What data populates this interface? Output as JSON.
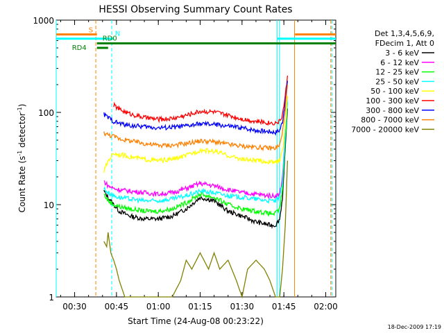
{
  "chart_data": {
    "type": "line",
    "title": "HESSI Observing Summary Count Rates",
    "xlabel": "Start Time (24-Aug-08 00:23:22)",
    "ylabel_main": "Count Rate (s",
    "ylabel_sup1": "-1",
    "ylabel_mid": " detector",
    "ylabel_sup2": "-1",
    "ylabel_end": ")",
    "y_scale": "log",
    "ylim": [
      1,
      1000
    ],
    "xlim_minutes": [
      23.4,
      123.6
    ],
    "x_ticks": [
      {
        "label": "00:30",
        "minutes": 30
      },
      {
        "label": "00:45",
        "minutes": 45
      },
      {
        "label": "01:00",
        "minutes": 60
      },
      {
        "label": "01:15",
        "minutes": 75
      },
      {
        "label": "01:30",
        "minutes": 90
      },
      {
        "label": "01:45",
        "minutes": 105
      },
      {
        "label": "02:00",
        "minutes": 120
      }
    ],
    "y_ticks": [
      {
        "label": "1",
        "value": 1
      },
      {
        "label": "10",
        "value": 10
      },
      {
        "label": "100",
        "value": 100
      },
      {
        "label": "1000",
        "value": 1000
      }
    ],
    "legend_header": [
      "Det 1,3,4,5,6,9,",
      "FDecim 1, Att 0"
    ],
    "legend_placement": "right",
    "series": [
      {
        "name": "3 - 6 keV",
        "color": "#000000",
        "x": [
          40.5,
          42,
          44,
          46,
          50,
          55,
          60,
          65,
          70,
          75,
          80,
          85,
          90,
          95,
          100,
          102,
          103.5,
          104.5,
          105.5,
          106.3
        ],
        "values": [
          14,
          12,
          10,
          8.5,
          7.5,
          7,
          7,
          7.5,
          9,
          12,
          11,
          8.5,
          7.5,
          6.5,
          6,
          6,
          7,
          12,
          40,
          110
        ]
      },
      {
        "name": "6 - 12 keV",
        "color": "#ff00ff",
        "x": [
          40.5,
          42,
          44,
          46,
          50,
          55,
          60,
          65,
          70,
          75,
          80,
          85,
          90,
          95,
          100,
          102,
          103.5,
          104.5,
          105.5,
          106.3
        ],
        "values": [
          18,
          16,
          15,
          14.5,
          14,
          13.5,
          13,
          13.5,
          15,
          17,
          16,
          14.5,
          13.5,
          13,
          12.5,
          12.5,
          13,
          20,
          60,
          150
        ]
      },
      {
        "name": "12 - 25 keV",
        "color": "#00ff00",
        "x": [
          40.5,
          42,
          44,
          46,
          50,
          55,
          60,
          65,
          70,
          75,
          80,
          85,
          90,
          95,
          100,
          102,
          103.5,
          104.5,
          105.5,
          106.3
        ],
        "values": [
          13,
          11,
          10,
          9.5,
          9,
          8.5,
          8.5,
          9,
          10.5,
          13,
          12,
          10,
          9,
          8.5,
          8,
          8,
          9,
          15,
          50,
          130
        ]
      },
      {
        "name": "25 - 50 keV",
        "color": "#00ffff",
        "x": [
          40.5,
          42,
          44,
          46,
          50,
          55,
          60,
          65,
          70,
          75,
          80,
          85,
          90,
          95,
          100,
          102,
          103.5,
          104.5,
          105.5,
          106.3
        ],
        "values": [
          15,
          13.5,
          12.5,
          12,
          11.5,
          11,
          11,
          11.5,
          12.5,
          14,
          13.5,
          12.5,
          12,
          11.5,
          11,
          11,
          12,
          18,
          55,
          140
        ]
      },
      {
        "name": "50 - 100 keV",
        "color": "#ffff00",
        "x": [
          40.5,
          42,
          44,
          46,
          50,
          55,
          60,
          65,
          70,
          75,
          80,
          85,
          90,
          95,
          100,
          102,
          103.5,
          104.5,
          105.5,
          106.3
        ],
        "values": [
          23,
          30,
          36,
          35,
          33,
          31,
          30,
          31,
          34,
          39,
          38,
          34,
          31,
          30,
          29,
          29,
          30,
          38,
          70,
          150
        ]
      },
      {
        "name": "100 - 300 keV",
        "color": "#ff0000",
        "x": [
          44,
          46,
          50,
          55,
          60,
          65,
          70,
          75,
          80,
          85,
          90,
          95,
          100,
          102,
          103.5,
          104.5,
          105.5,
          106.3
        ],
        "values": [
          120,
          108,
          96,
          88,
          84,
          86,
          93,
          103,
          101,
          93,
          85,
          80,
          77,
          77,
          80,
          95,
          150,
          250
        ]
      },
      {
        "name": "300 - 800 keV",
        "color": "#0000ff",
        "x": [
          40.5,
          42,
          44,
          46,
          50,
          55,
          60,
          65,
          70,
          75,
          80,
          85,
          90,
          95,
          100,
          102,
          103.5,
          104.5,
          105.5,
          106.3
        ],
        "values": [
          95,
          88,
          80,
          76,
          72,
          70,
          68,
          69,
          71,
          75,
          74,
          71,
          68,
          64,
          62,
          61,
          64,
          80,
          130,
          220
        ]
      },
      {
        "name": "800 - 7000 keV",
        "color": "#ff8000",
        "x": [
          40.5,
          42,
          44,
          46,
          50,
          55,
          60,
          65,
          70,
          75,
          80,
          85,
          90,
          95,
          100,
          102,
          103.5,
          104.5,
          105.5,
          106.3
        ],
        "values": [
          60,
          57,
          55,
          52,
          49,
          46,
          44,
          44,
          46,
          49,
          48,
          45,
          43,
          42,
          41,
          41,
          44,
          60,
          110,
          200
        ]
      },
      {
        "name": "7000 - 20000 keV",
        "color": "#808000",
        "x": [
          40.5,
          41.5,
          42,
          43,
          44,
          45,
          46,
          48,
          50,
          55,
          60,
          65,
          68,
          70,
          72,
          75,
          78,
          80,
          82,
          85,
          88,
          90,
          92,
          95,
          98,
          100,
          102,
          103.5,
          104.5,
          105.5,
          106.3
        ],
        "values": [
          4,
          3.5,
          5,
          3,
          2.5,
          2,
          1.5,
          1,
          1,
          1,
          1,
          1,
          1.5,
          2.5,
          2,
          3,
          2,
          3,
          2,
          2.5,
          1.5,
          1,
          2,
          2.5,
          2,
          1.5,
          1,
          1,
          2,
          6,
          30
        ]
      }
    ],
    "markers": [
      {
        "label": "S",
        "color": "#ff8000",
        "y": 700,
        "x_ranges": [
          [
            23.4,
            38
          ]
        ]
      },
      {
        "label": "",
        "color": "#ff8000",
        "y": 700,
        "x_ranges": [
          [
            109,
            123.6
          ]
        ]
      },
      {
        "label": "N",
        "color": "#00ffff",
        "y": 630,
        "x_ranges": [
          [
            23.4,
            44
          ]
        ]
      },
      {
        "label": "",
        "color": "#00ffff",
        "y": 630,
        "x_ranges": [
          [
            102.6,
            123.6
          ]
        ]
      },
      {
        "label": "RD0",
        "color": "#008000",
        "y": 560,
        "x_ranges": [
          [
            38,
            123.6
          ]
        ]
      },
      {
        "label": "RD4",
        "color": "#008000",
        "y": 500,
        "x_ranges": [
          [
            38,
            42
          ]
        ]
      }
    ],
    "vlines": [
      {
        "minutes": 23.4,
        "color": "#00ffff",
        "dash": false
      },
      {
        "minutes": 37.6,
        "color": "#ff8000",
        "dash": true
      },
      {
        "minutes": 43.3,
        "color": "#00ffff",
        "dash": true
      },
      {
        "minutes": 102.6,
        "color": "#00ffff",
        "dash": false
      },
      {
        "minutes": 103.4,
        "color": "#00ffff",
        "dash": false
      },
      {
        "minutes": 108.8,
        "color": "#ff8000",
        "dash": false
      },
      {
        "minutes": 121.8,
        "color": "#ff8000",
        "dash": true
      },
      {
        "minutes": 122.2,
        "color": "#00ffff",
        "dash": true
      }
    ]
  },
  "footer": {
    "date_stamp": "18-Dec-2009 17:19"
  }
}
